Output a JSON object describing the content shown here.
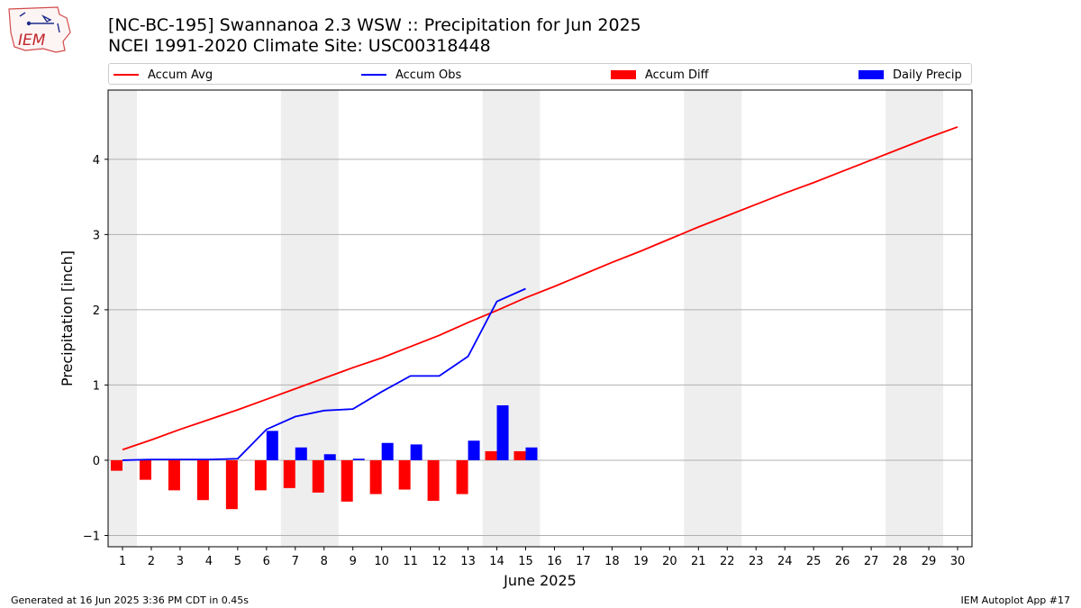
{
  "header": {
    "title_line1": "[NC-BC-195] Swannanoa 2.3 WSW :: Precipitation for Jun 2025",
    "title_line2": "NCEI 1991-2020 Climate Site: USC00318448",
    "logo_text": "IEM"
  },
  "footer": {
    "generated": "Generated at 16 Jun 2025 3:36 PM CDT in 0.45s",
    "app": "IEM Autoplot App #17"
  },
  "colors": {
    "accum_avg": "#ff0000",
    "accum_obs": "#0000ff",
    "accum_diff": "#ff0000",
    "daily_precip": "#0000ff",
    "weekend_shade": "#eeeeee",
    "grid": "#b0b0b0"
  },
  "chart_data": {
    "type": "bar",
    "xlabel": "June 2025",
    "ylabel": "Precipitation [inch]",
    "xlim": [
      0.5,
      30.5
    ],
    "ylim": [
      -1.15,
      4.92
    ],
    "yticks": [
      -1,
      0,
      1,
      2,
      3,
      4
    ],
    "grid": "horizontal",
    "legend_placement": "top",
    "days": [
      1,
      2,
      3,
      4,
      5,
      6,
      7,
      8,
      9,
      10,
      11,
      12,
      13,
      14,
      15,
      16,
      17,
      18,
      19,
      20,
      21,
      22,
      23,
      24,
      25,
      26,
      27,
      28,
      29,
      30
    ],
    "weekend_spans": [
      [
        0.5,
        1.5
      ],
      [
        6.5,
        8.5
      ],
      [
        13.5,
        15.5
      ],
      [
        20.5,
        22.5
      ],
      [
        27.5,
        29.5
      ]
    ],
    "series": [
      {
        "name": "Accum Avg",
        "kind": "line",
        "values": [
          0.14,
          0.27,
          0.41,
          0.54,
          0.67,
          0.81,
          0.95,
          1.09,
          1.23,
          1.36,
          1.51,
          1.66,
          1.83,
          1.99,
          2.16,
          2.31,
          2.47,
          2.63,
          2.78,
          2.94,
          3.1,
          3.25,
          3.4,
          3.55,
          3.69,
          3.84,
          3.99,
          4.14,
          4.29,
          4.43
        ]
      },
      {
        "name": "Accum Obs",
        "kind": "line",
        "values": [
          0.0,
          0.01,
          0.01,
          0.01,
          0.02,
          0.41,
          0.58,
          0.66,
          0.68,
          0.91,
          1.12,
          1.12,
          1.38,
          2.11,
          2.28
        ]
      },
      {
        "name": "Accum Diff",
        "kind": "bar",
        "values": [
          -0.14,
          -0.26,
          -0.4,
          -0.53,
          -0.65,
          -0.4,
          -0.37,
          -0.43,
          -0.55,
          -0.45,
          -0.39,
          -0.54,
          -0.45,
          0.12,
          0.12
        ]
      },
      {
        "name": "Daily Precip",
        "kind": "bar",
        "values": [
          0.0,
          0.0,
          0.0,
          0.0,
          0.0,
          0.39,
          0.17,
          0.08,
          0.02,
          0.23,
          0.21,
          0.0,
          0.26,
          0.73,
          0.17
        ]
      }
    ]
  }
}
